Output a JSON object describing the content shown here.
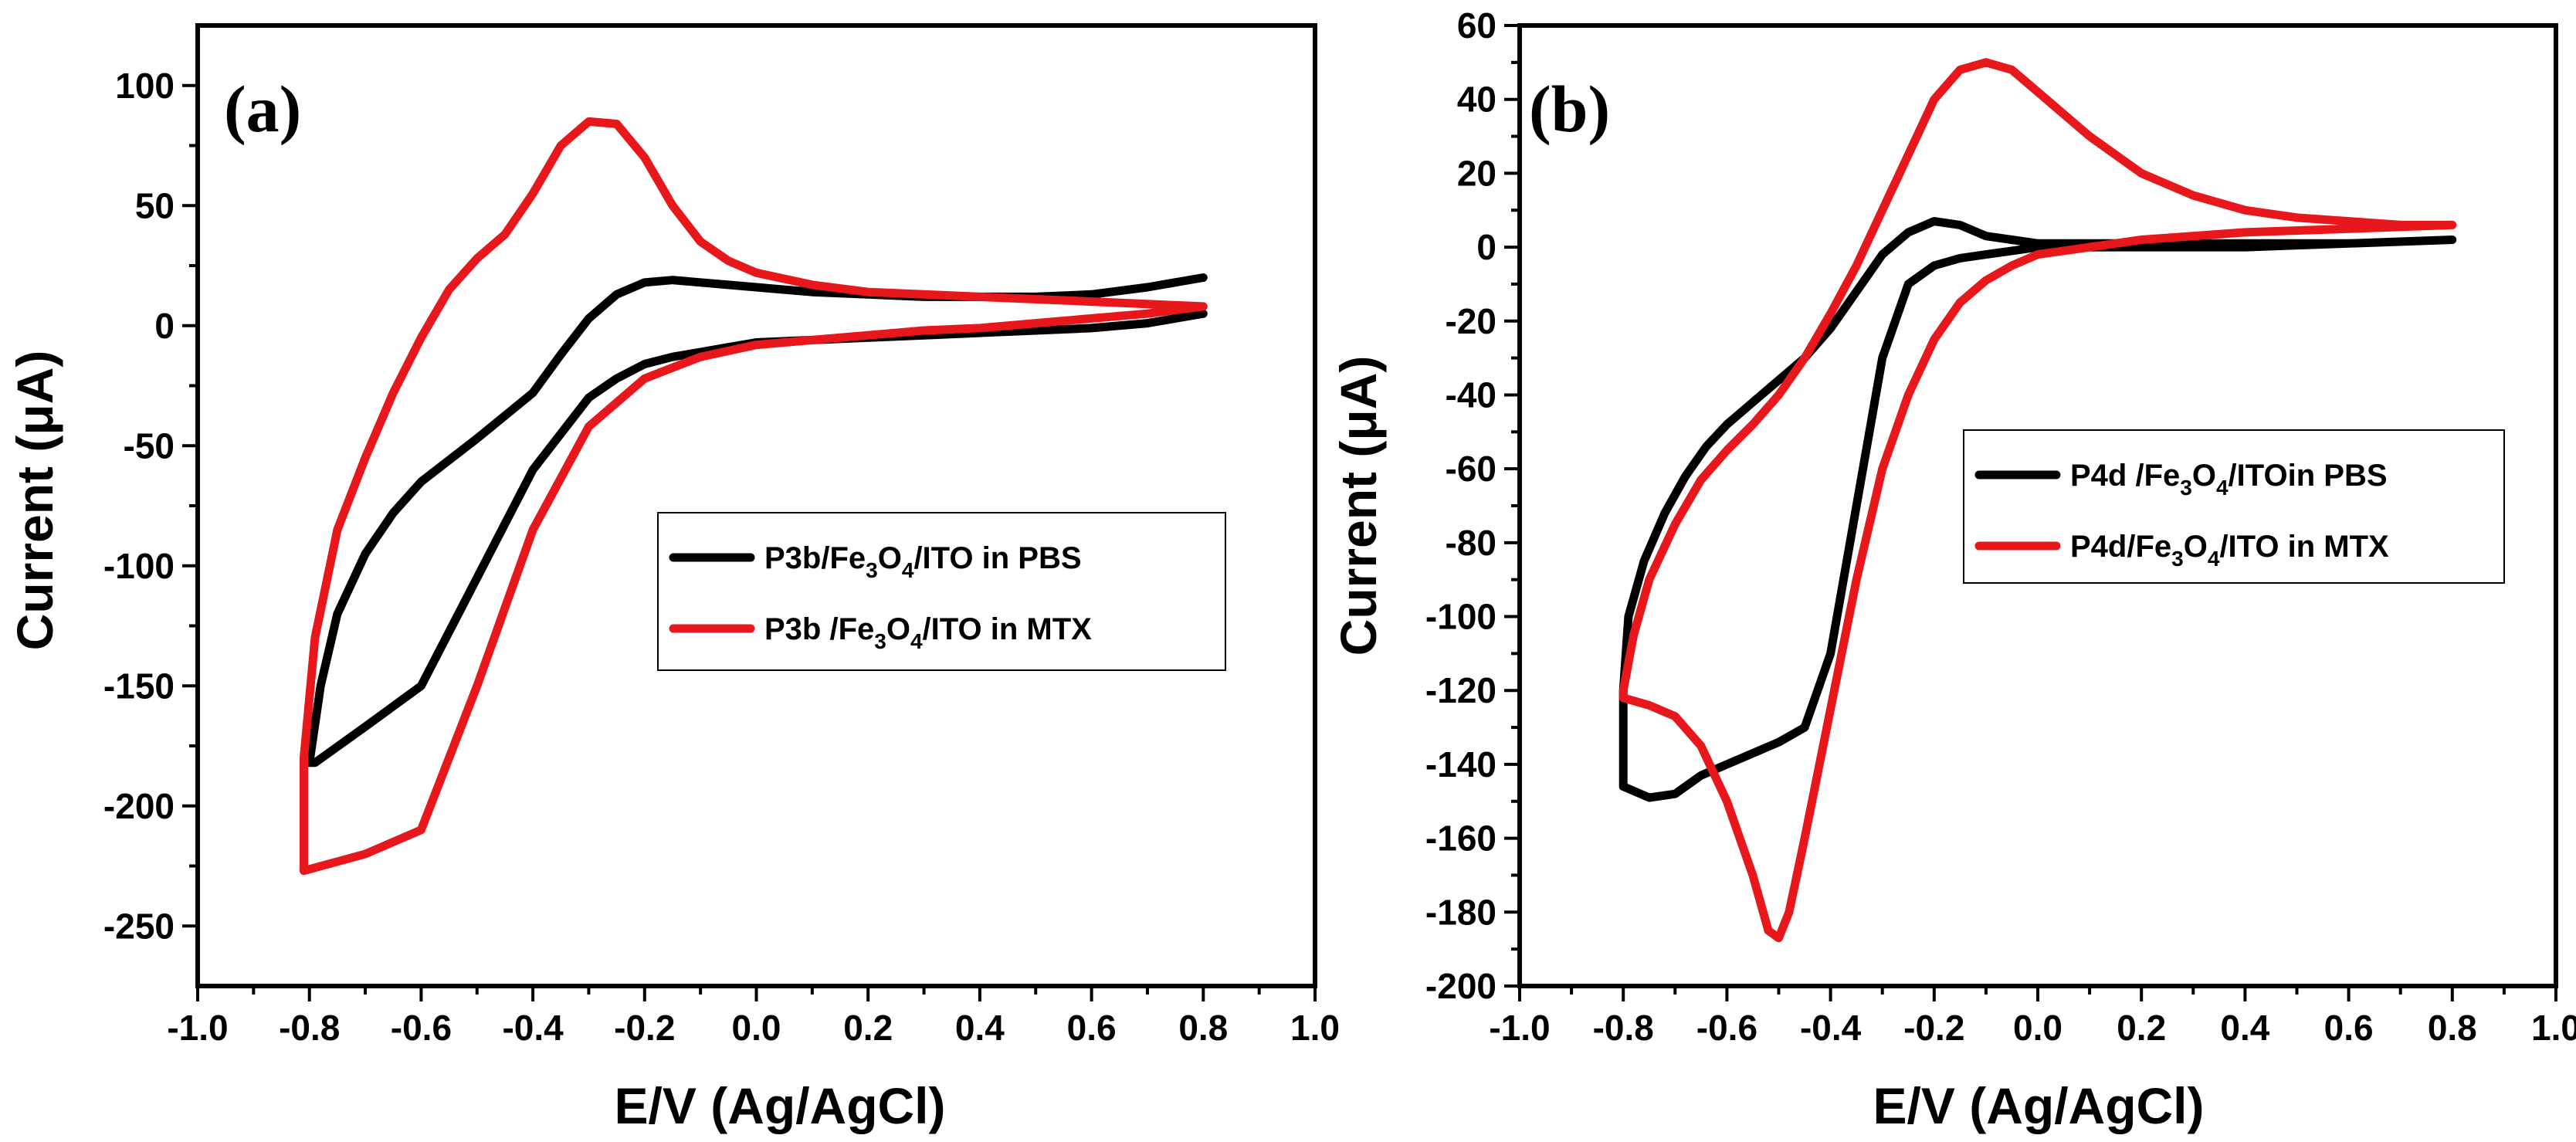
{
  "chart_data": [
    {
      "type": "line",
      "panel_label": "(a)",
      "xlabel": "E/V (Ag/AgCl)",
      "ylabel": "Current (μA)",
      "xlim": [
        -1.0,
        1.0
      ],
      "ylim": [
        -275,
        125
      ],
      "xticks": [
        -1.0,
        -0.8,
        -0.6,
        -0.4,
        -0.2,
        0.0,
        0.2,
        0.4,
        0.6,
        0.8,
        1.0
      ],
      "xtick_labels": [
        "-1.0",
        "-0.8",
        "-0.6",
        "-0.4",
        "-0.2",
        "0.0",
        "0.2",
        "0.4",
        "0.6",
        "0.8",
        "1.0"
      ],
      "yticks": [
        100,
        50,
        0,
        -50,
        -100,
        -150,
        -200,
        -250
      ],
      "ytick_labels": [
        "100",
        "50",
        "0",
        "-50",
        "-100",
        "-150",
        "-200",
        "-250"
      ],
      "legend": {
        "position": "center-right",
        "entries": [
          {
            "base": "P3b/Fe",
            "sub1": "3",
            "mid": "O",
            "sub2": "4",
            "tail": "/ITO in PBS",
            "color": "#000000"
          },
          {
            "base": "P3b /Fe",
            "sub1": "3",
            "mid": "O",
            "sub2": "4",
            "tail": "/ITO in MTX",
            "color": "#e8171b"
          }
        ]
      },
      "series": [
        {
          "color": "#000000",
          "x": [
            0.8,
            0.7,
            0.6,
            0.5,
            0.4,
            0.3,
            0.2,
            0.1,
            0.0,
            -0.05,
            -0.1,
            -0.15,
            -0.2,
            -0.25,
            -0.3,
            -0.4,
            -0.5,
            -0.6,
            -0.7,
            -0.79,
            -0.8,
            -0.78,
            -0.75,
            -0.7,
            -0.65,
            -0.6,
            -0.5,
            -0.4,
            -0.35,
            -0.3,
            -0.25,
            -0.2,
            -0.15,
            -0.1,
            -0.05,
            0.0,
            0.1,
            0.2,
            0.3,
            0.4,
            0.5,
            0.6,
            0.7,
            0.8,
            0.8
          ],
          "y": [
            5,
            1,
            -1,
            -2,
            -3,
            -4,
            -5,
            -6,
            -7,
            -9,
            -11,
            -13,
            -16,
            -22,
            -30,
            -60,
            -105,
            -150,
            -167,
            -182,
            -182,
            -150,
            -120,
            -95,
            -78,
            -65,
            -47,
            -28,
            -12,
            3,
            13,
            18,
            19,
            18,
            17,
            16,
            14,
            13,
            12,
            12,
            12,
            13,
            16,
            20,
            20
          ]
        },
        {
          "color": "#e8171b",
          "x": [
            0.8,
            0.7,
            0.6,
            0.5,
            0.4,
            0.3,
            0.2,
            0.1,
            0.0,
            -0.1,
            -0.2,
            -0.3,
            -0.4,
            -0.5,
            -0.6,
            -0.7,
            -0.81,
            -0.81,
            -0.79,
            -0.75,
            -0.7,
            -0.65,
            -0.6,
            -0.55,
            -0.5,
            -0.45,
            -0.4,
            -0.35,
            -0.3,
            -0.25,
            -0.2,
            -0.15,
            -0.1,
            -0.05,
            0.0,
            0.1,
            0.2,
            0.3,
            0.4,
            0.5,
            0.6,
            0.7,
            0.8
          ],
          "y": [
            8,
            5,
            3,
            1,
            -1,
            -2,
            -4,
            -6,
            -8,
            -13,
            -22,
            -42,
            -85,
            -150,
            -210,
            -220,
            -227,
            -180,
            -130,
            -85,
            -55,
            -28,
            -5,
            15,
            28,
            38,
            55,
            75,
            85,
            84,
            70,
            50,
            35,
            27,
            22,
            17,
            14,
            13,
            12,
            11,
            10,
            9,
            8
          ]
        }
      ]
    },
    {
      "type": "line",
      "panel_label": "(b)",
      "xlabel": "E/V (Ag/AgCl)",
      "ylabel": "Current (μA)",
      "xlim": [
        -1.0,
        1.0
      ],
      "ylim": [
        -200,
        60
      ],
      "xticks": [
        -1.0,
        -0.8,
        -0.6,
        -0.4,
        -0.2,
        0.0,
        0.2,
        0.4,
        0.6,
        0.8,
        1.0
      ],
      "xtick_labels": [
        "-1.0",
        "-0.8",
        "-0.6",
        "-0.4",
        "-0.2",
        "0.0",
        "0.2",
        "0.4",
        "0.6",
        "0.8",
        "1.0"
      ],
      "yticks": [
        60,
        40,
        20,
        0,
        -20,
        -40,
        -60,
        -80,
        -100,
        -120,
        -140,
        -160,
        -180,
        -200
      ],
      "ytick_labels": [
        "60",
        "40",
        "20",
        "0",
        "-20",
        "-40",
        "-60",
        "-80",
        "-100",
        "-120",
        "-140",
        "-160",
        "-180",
        "-200"
      ],
      "legend": {
        "position": "center-right",
        "entries": [
          {
            "base": "P4d /Fe",
            "sub1": "3",
            "mid": "O",
            "sub2": "4",
            "tail": "/ITOin PBS",
            "color": "#000000"
          },
          {
            "base": "P4d/Fe",
            "sub1": "3",
            "mid": "O",
            "sub2": "4",
            "tail": "/ITO in MTX",
            "color": "#e8171b"
          }
        ]
      },
      "series": [
        {
          "color": "#000000",
          "x": [
            0.8,
            0.6,
            0.4,
            0.2,
            0.1,
            0.0,
            -0.05,
            -0.1,
            -0.15,
            -0.2,
            -0.25,
            -0.3,
            -0.35,
            -0.4,
            -0.45,
            -0.5,
            -0.55,
            -0.6,
            -0.65,
            -0.7,
            -0.75,
            -0.8,
            -0.8,
            -0.79,
            -0.76,
            -0.72,
            -0.68,
            -0.64,
            -0.6,
            -0.55,
            -0.5,
            -0.45,
            -0.4,
            -0.35,
            -0.3,
            -0.25,
            -0.2,
            -0.15,
            -0.1,
            -0.05,
            0.0,
            0.1,
            0.2,
            0.4,
            0.6,
            0.8
          ],
          "y": [
            2,
            1,
            0,
            0,
            0,
            0,
            -1,
            -2,
            -3,
            -5,
            -10,
            -30,
            -70,
            -110,
            -130,
            -134,
            -137,
            -140,
            -143,
            -148,
            -149,
            -146,
            -120,
            -100,
            -85,
            -72,
            -62,
            -54,
            -48,
            -42,
            -36,
            -30,
            -22,
            -12,
            -2,
            4,
            7,
            6,
            3,
            2,
            1,
            1,
            1,
            1,
            1,
            2
          ]
        },
        {
          "color": "#e8171b",
          "x": [
            0.8,
            0.6,
            0.4,
            0.2,
            0.1,
            0.0,
            -0.05,
            -0.1,
            -0.15,
            -0.2,
            -0.25,
            -0.3,
            -0.35,
            -0.4,
            -0.45,
            -0.48,
            -0.5,
            -0.52,
            -0.55,
            -0.6,
            -0.65,
            -0.7,
            -0.75,
            -0.8,
            -0.8,
            -0.78,
            -0.75,
            -0.7,
            -0.65,
            -0.6,
            -0.55,
            -0.5,
            -0.45,
            -0.4,
            -0.35,
            -0.3,
            -0.25,
            -0.2,
            -0.15,
            -0.1,
            -0.05,
            0.0,
            0.1,
            0.2,
            0.3,
            0.4,
            0.5,
            0.6,
            0.7,
            0.8
          ],
          "y": [
            6,
            5,
            4,
            2,
            0,
            -2,
            -5,
            -9,
            -15,
            -25,
            -40,
            -60,
            -90,
            -125,
            -160,
            -180,
            -187,
            -185,
            -170,
            -150,
            -135,
            -127,
            -124,
            -122,
            -120,
            -105,
            -90,
            -75,
            -63,
            -55,
            -48,
            -40,
            -30,
            -18,
            -5,
            10,
            25,
            40,
            48,
            50,
            48,
            42,
            30,
            20,
            14,
            10,
            8,
            7,
            6,
            6
          ]
        }
      ]
    }
  ]
}
